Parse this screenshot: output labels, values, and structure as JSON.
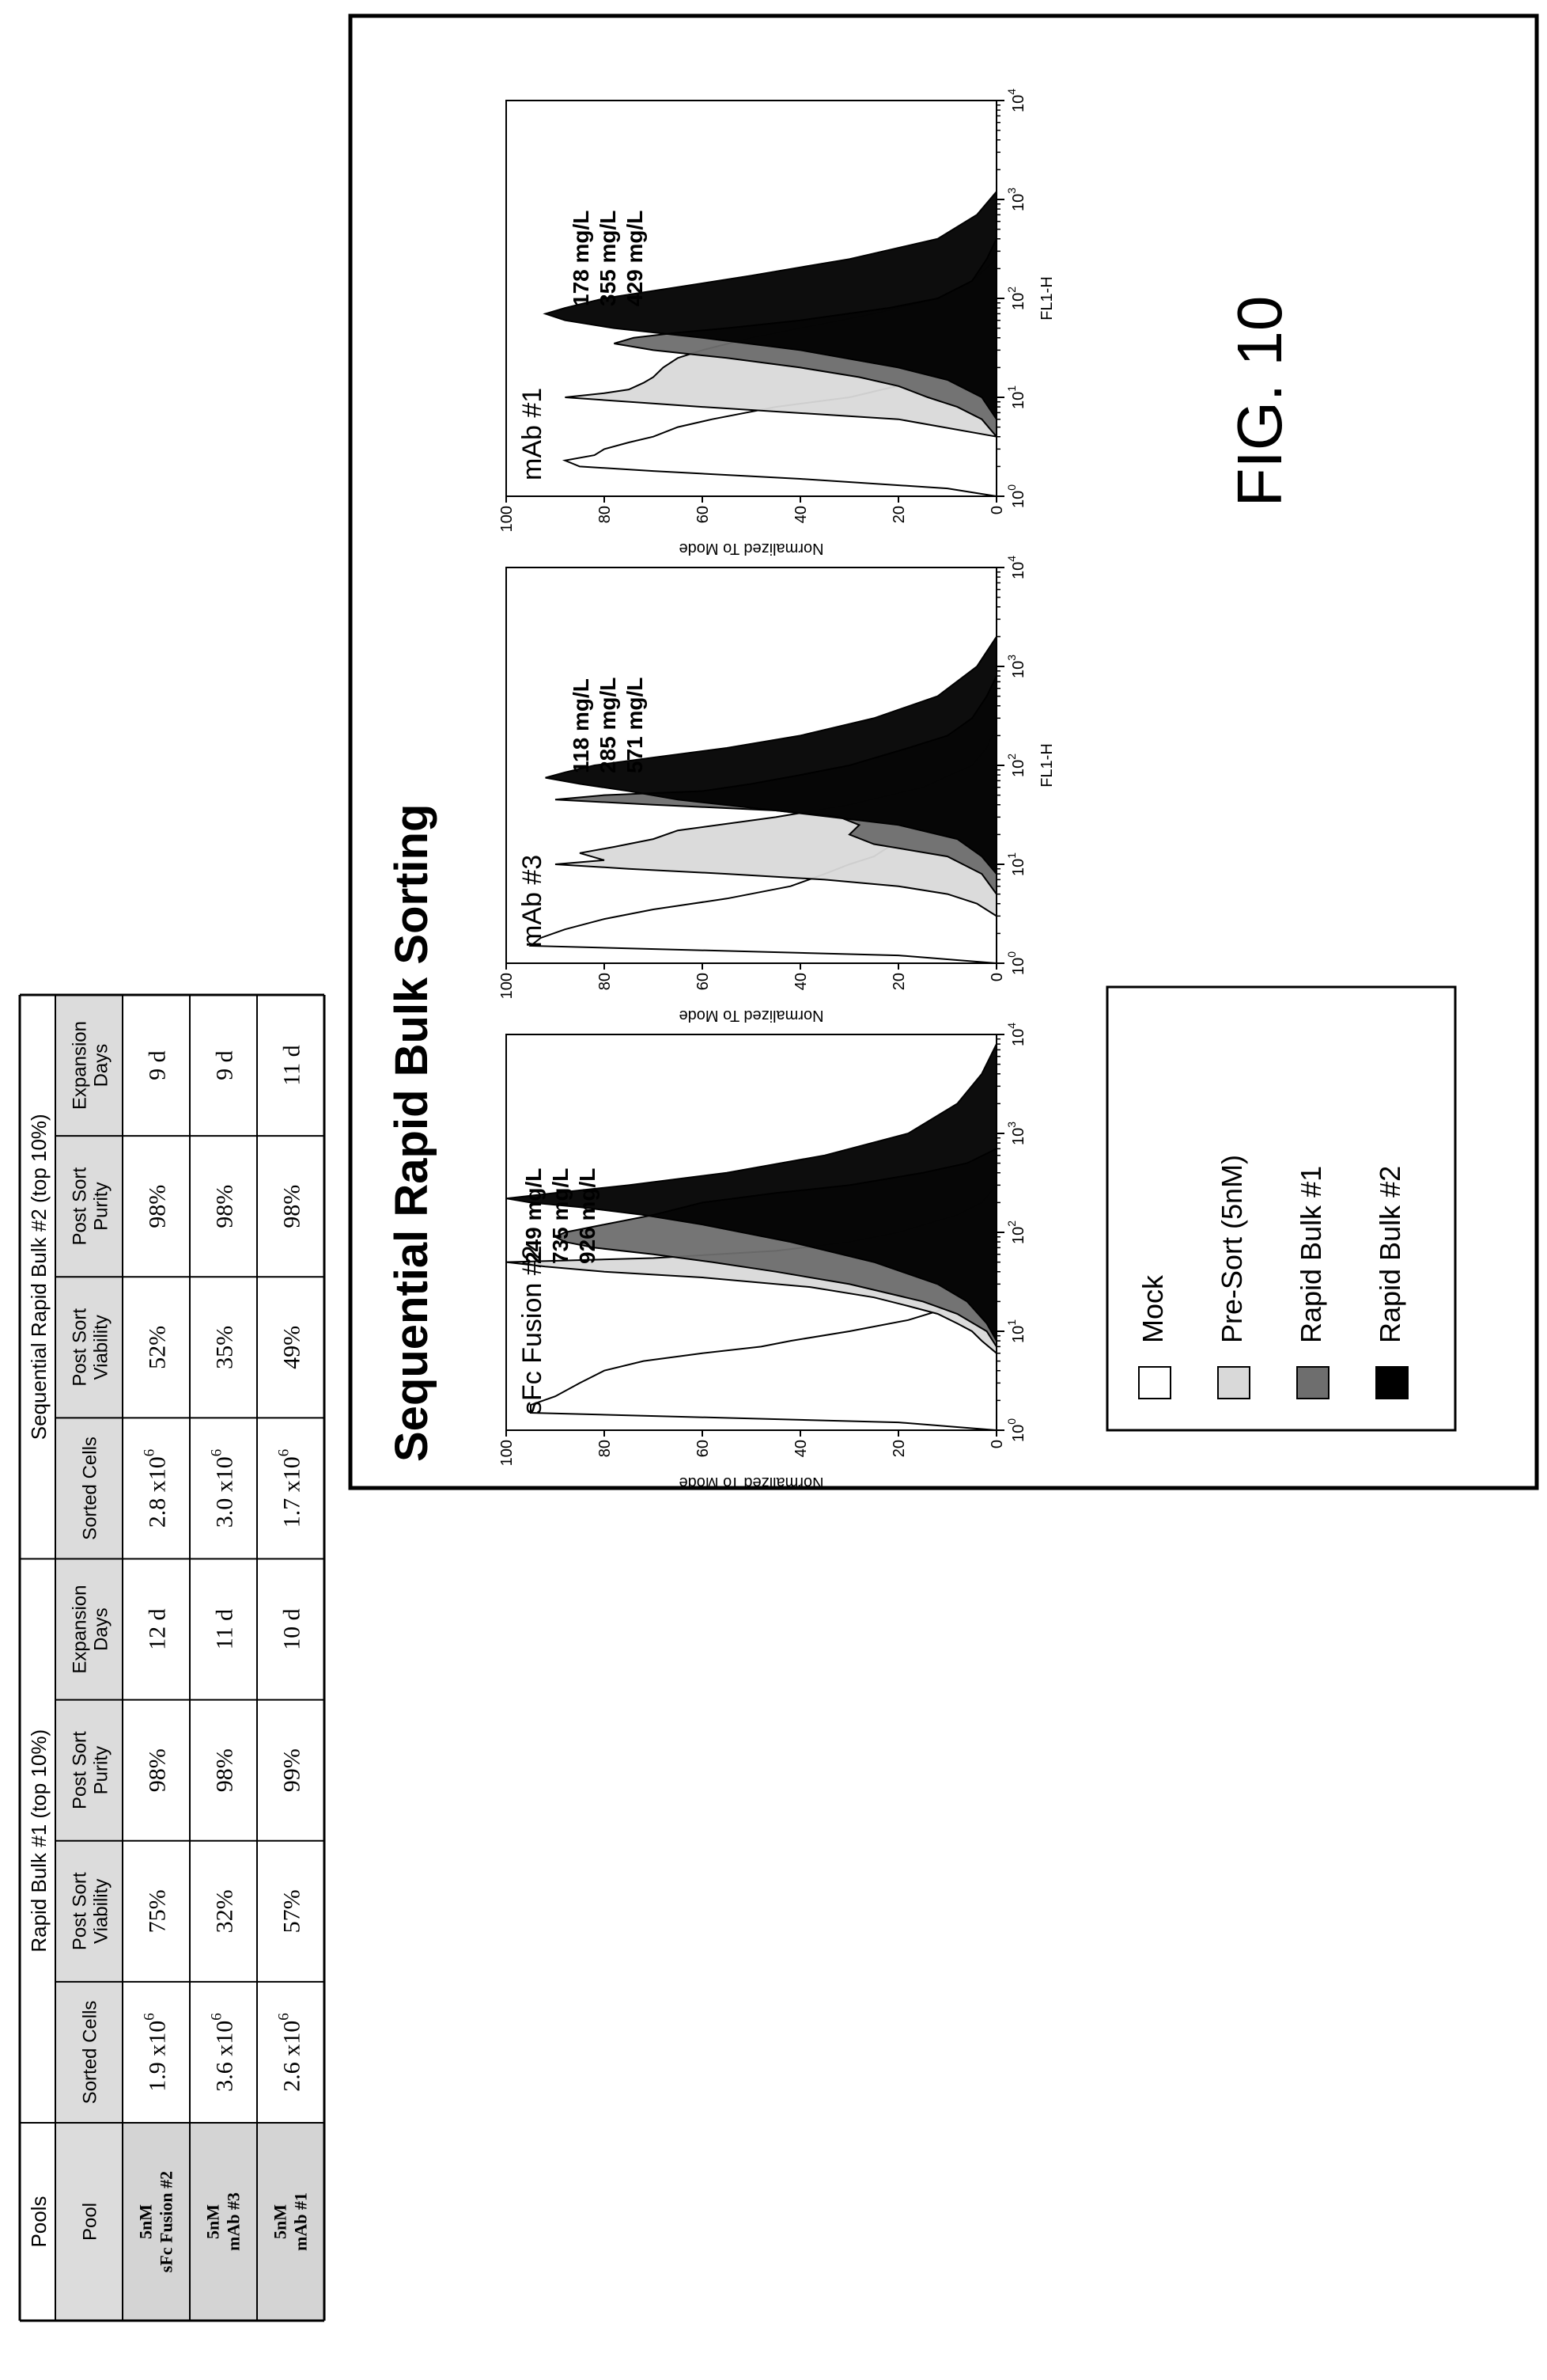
{
  "table": {
    "group_headers": [
      "Pools",
      "Rapid Bulk #1 (top 10%)",
      "Sequential Rapid Bulk #2 (top 10%)"
    ],
    "column_headers": [
      [
        "Pool"
      ],
      [
        "Sorted Cells"
      ],
      [
        "Post Sort",
        "Viability"
      ],
      [
        "Post Sort",
        "Purity"
      ],
      [
        "Expansion",
        "Days"
      ],
      [
        "Sorted Cells"
      ],
      [
        "Post Sort",
        "Viability"
      ],
      [
        "Post Sort",
        "Purity"
      ],
      [
        "Expansion",
        "Days"
      ]
    ],
    "rows": [
      {
        "pool": [
          "5nM",
          "sFc Fusion #2"
        ],
        "bulk1": {
          "sorted_cells": {
            "mantissa": "1.9 x10",
            "exp": "6"
          },
          "viability": "75%",
          "purity": "98%",
          "days": "12 d"
        },
        "bulk2": {
          "sorted_cells": {
            "mantissa": "2.8 x10",
            "exp": "6"
          },
          "viability": "52%",
          "purity": "98%",
          "days": "9 d"
        }
      },
      {
        "pool": [
          "5nM",
          "mAb #3"
        ],
        "bulk1": {
          "sorted_cells": {
            "mantissa": "3.6 x10",
            "exp": "6"
          },
          "viability": "32%",
          "purity": "98%",
          "days": "11 d"
        },
        "bulk2": {
          "sorted_cells": {
            "mantissa": "3.0 x10",
            "exp": "6"
          },
          "viability": "35%",
          "purity": "98%",
          "days": "9 d"
        }
      },
      {
        "pool": [
          "5nM",
          "mAb #1"
        ],
        "bulk1": {
          "sorted_cells": {
            "mantissa": "2.6 x10",
            "exp": "6"
          },
          "viability": "57%",
          "purity": "99%",
          "days": "10 d"
        },
        "bulk2": {
          "sorted_cells": {
            "mantissa": "1.7 x10",
            "exp": "6"
          },
          "viability": "49%",
          "purity": "98%",
          "days": "11 d"
        }
      }
    ]
  },
  "panel": {
    "title": "Sequential Rapid Bulk Sorting",
    "legend": [
      {
        "label": "Mock",
        "color": "#ffffff"
      },
      {
        "label": "Pre-Sort (5nM)",
        "color": "#d9d9d9"
      },
      {
        "label": "Rapid Bulk #1",
        "color": "#6e6e6e"
      },
      {
        "label": "Rapid Bulk #2",
        "color": "#000000"
      }
    ]
  },
  "chart_data": [
    {
      "type": "area",
      "title": "sFc Fusion #2",
      "xlabel": "",
      "ylabel": "Normalized To Mode",
      "x_scale": "log",
      "xlim": [
        1,
        10000
      ],
      "ylim": [
        0,
        100
      ],
      "y_ticks": [
        0,
        20,
        40,
        60,
        80,
        100
      ],
      "x_ticks": [
        {
          "base": "10",
          "exp": "0"
        },
        {
          "base": "10",
          "exp": "1"
        },
        {
          "base": "10",
          "exp": "2"
        },
        {
          "base": "10",
          "exp": "3"
        },
        {
          "base": "10",
          "exp": "4"
        }
      ],
      "annotations": [
        "249 mg/L",
        "735 mg/L",
        "926 mg/L"
      ],
      "series": [
        {
          "x": [
            1,
            1.2,
            1.5,
            1.8,
            2.2,
            3,
            4,
            5,
            6,
            7,
            8,
            10,
            13,
            16,
            20,
            30,
            50,
            100
          ],
          "values": [
            0,
            20,
            95,
            95,
            90,
            85,
            80,
            72,
            60,
            48,
            42,
            30,
            18,
            12,
            8,
            4,
            2,
            0
          ]
        },
        {
          "x": [
            6,
            8,
            10,
            12,
            15,
            18,
            22,
            28,
            35,
            40,
            45,
            50,
            55,
            65,
            80,
            100,
            150,
            200,
            300
          ],
          "values": [
            0,
            3,
            5,
            8,
            12,
            18,
            25,
            38,
            60,
            80,
            92,
            100,
            70,
            45,
            30,
            20,
            8,
            3,
            0
          ]
        },
        {
          "x": [
            7,
            10,
            15,
            20,
            30,
            40,
            50,
            60,
            70,
            80,
            90,
            100,
            120,
            150,
            200,
            250,
            300,
            400,
            500,
            700
          ],
          "values": [
            0,
            2,
            8,
            15,
            30,
            45,
            58,
            70,
            82,
            88,
            90,
            88,
            80,
            70,
            60,
            45,
            30,
            15,
            6,
            0
          ]
        },
        {
          "x": [
            8,
            12,
            20,
            30,
            50,
            80,
            120,
            150,
            180,
            200,
            220,
            250,
            300,
            400,
            600,
            1000,
            2000,
            4000,
            8000
          ],
          "values": [
            0,
            2,
            6,
            12,
            25,
            42,
            60,
            72,
            85,
            95,
            100,
            90,
            75,
            55,
            35,
            18,
            8,
            3,
            0
          ]
        }
      ]
    },
    {
      "type": "area",
      "title": "mAb #3",
      "xlabel": "FL1-H",
      "ylabel": "Normalized To Mode",
      "x_scale": "log",
      "xlim": [
        1,
        10000
      ],
      "ylim": [
        0,
        100
      ],
      "y_ticks": [
        0,
        20,
        40,
        60,
        80,
        100
      ],
      "x_ticks": [
        {
          "base": "10",
          "exp": "0"
        },
        {
          "base": "10",
          "exp": "1"
        },
        {
          "base": "10",
          "exp": "2"
        },
        {
          "base": "10",
          "exp": "3"
        },
        {
          "base": "10",
          "exp": "4"
        }
      ],
      "annotations": [
        "118 mg/L",
        "285 mg/L",
        "571 mg/L"
      ],
      "series": [
        {
          "x": [
            1,
            1.2,
            1.5,
            1.8,
            2.2,
            2.8,
            3.5,
            4.5,
            6,
            8,
            10,
            12,
            15,
            20,
            30,
            50,
            80,
            120,
            200
          ],
          "values": [
            0,
            20,
            95,
            93,
            88,
            80,
            70,
            55,
            42,
            35,
            30,
            25,
            22,
            18,
            10,
            5,
            3,
            1,
            0
          ]
        },
        {
          "x": [
            3,
            4,
            5,
            6,
            7,
            8,
            9,
            10,
            11,
            13,
            15,
            18,
            22,
            30,
            40,
            60,
            100,
            150,
            250
          ],
          "values": [
            0,
            4,
            10,
            20,
            35,
            55,
            75,
            90,
            80,
            85,
            78,
            70,
            65,
            45,
            30,
            15,
            5,
            2,
            0
          ]
        },
        {
          "x": [
            5,
            8,
            12,
            16,
            20,
            25,
            30,
            35,
            40,
            45,
            50,
            55,
            65,
            80,
            100,
            150,
            200,
            300,
            500,
            800
          ],
          "values": [
            0,
            3,
            10,
            25,
            30,
            28,
            32,
            45,
            70,
            90,
            80,
            60,
            50,
            40,
            30,
            18,
            10,
            5,
            2,
            0
          ]
        },
        {
          "x": [
            8,
            12,
            18,
            25,
            35,
            45,
            55,
            65,
            75,
            85,
            100,
            120,
            150,
            200,
            300,
            500,
            1000,
            2000
          ],
          "values": [
            0,
            3,
            8,
            20,
            45,
            65,
            75,
            85,
            92,
            88,
            82,
            70,
            55,
            40,
            25,
            12,
            4,
            0
          ]
        }
      ]
    },
    {
      "type": "area",
      "title": "mAb #1",
      "xlabel": "FL1-H",
      "ylabel": "Normalized To Mode",
      "x_scale": "log",
      "xlim": [
        1,
        10000
      ],
      "ylim": [
        0,
        100
      ],
      "y_ticks": [
        0,
        20,
        40,
        60,
        80,
        100
      ],
      "x_ticks": [
        {
          "base": "10",
          "exp": "0"
        },
        {
          "base": "10",
          "exp": "1"
        },
        {
          "base": "10",
          "exp": "2"
        },
        {
          "base": "10",
          "exp": "3"
        },
        {
          "base": "10",
          "exp": "4"
        }
      ],
      "annotations": [
        "178 mg/L",
        "355 mg/L",
        "429 mg/L"
      ],
      "series": [
        {
          "x": [
            1,
            1.2,
            1.5,
            1.8,
            2,
            2.3,
            2.6,
            3,
            3.5,
            4,
            5,
            6,
            8,
            10,
            15,
            20,
            30,
            50,
            100
          ],
          "values": [
            0,
            10,
            40,
            70,
            85,
            88,
            82,
            80,
            75,
            70,
            65,
            58,
            45,
            30,
            15,
            8,
            4,
            1,
            0
          ]
        },
        {
          "x": [
            4,
            6,
            8,
            10,
            11,
            12,
            14,
            16,
            20,
            25,
            30,
            40,
            50,
            70,
            100,
            150,
            250
          ],
          "values": [
            0,
            20,
            60,
            88,
            80,
            75,
            72,
            70,
            68,
            65,
            60,
            50,
            40,
            25,
            12,
            5,
            0
          ]
        },
        {
          "x": [
            4,
            6,
            8,
            10,
            13,
            16,
            20,
            25,
            30,
            35,
            40,
            45,
            50,
            60,
            80,
            100,
            150,
            250,
            400
          ],
          "values": [
            0,
            3,
            8,
            14,
            20,
            28,
            40,
            55,
            70,
            78,
            74,
            65,
            55,
            40,
            22,
            12,
            5,
            2,
            0
          ]
        },
        {
          "x": [
            6,
            10,
            15,
            20,
            30,
            40,
            50,
            60,
            70,
            80,
            100,
            130,
            170,
            250,
            400,
            700,
            1200
          ],
          "values": [
            0,
            3,
            10,
            20,
            40,
            60,
            78,
            88,
            92,
            88,
            80,
            65,
            50,
            30,
            12,
            4,
            0
          ]
        }
      ]
    }
  ],
  "figure_label": "FIG. 10"
}
